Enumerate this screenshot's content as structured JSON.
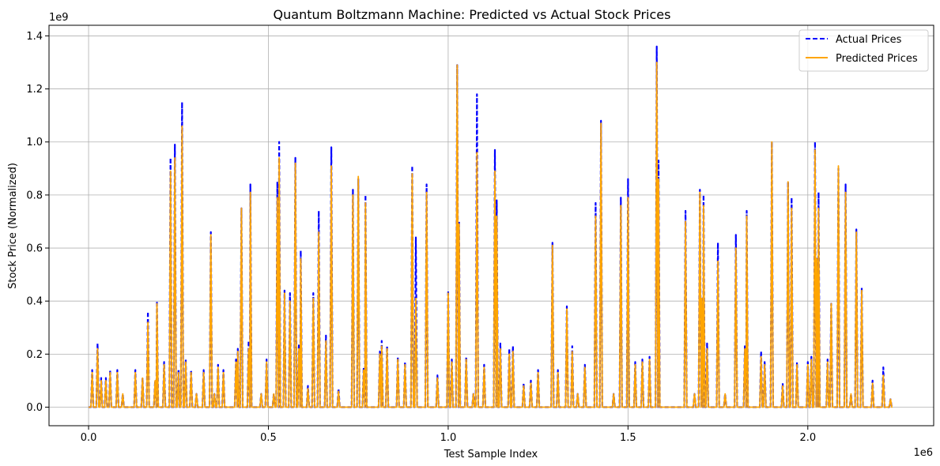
{
  "chart_data": {
    "type": "line",
    "title": "Quantum Boltzmann Machine: Predicted vs Actual Stock Prices",
    "xlabel": "Test Sample Index",
    "ylabel": "Stock Price (Normalized)",
    "x_offset_text": "1e6",
    "y_offset_text": "1e9",
    "xlim": [
      -0.11,
      2.35
    ],
    "ylim": [
      -0.07,
      1.44
    ],
    "x_ticks": [
      0.0,
      0.5,
      1.0,
      1.5,
      2.0
    ],
    "x_tick_labels": [
      "0.0",
      "0.5",
      "1.0",
      "1.5",
      "2.0"
    ],
    "y_ticks": [
      0.0,
      0.2,
      0.4,
      0.6,
      0.8,
      1.0,
      1.2,
      1.4
    ],
    "y_tick_labels": [
      "0.0",
      "0.2",
      "0.4",
      "0.6",
      "0.8",
      "1.0",
      "1.2",
      "1.4"
    ],
    "grid": true,
    "legend_position": "top-right",
    "series": [
      {
        "name": "Actual Prices",
        "color": "#0000ff",
        "style": "dashed",
        "peaks": [
          [
            0.01,
            0.14
          ],
          [
            0.025,
            0.24
          ],
          [
            0.035,
            0.11
          ],
          [
            0.048,
            0.11
          ],
          [
            0.06,
            0.14
          ],
          [
            0.08,
            0.14
          ],
          [
            0.095,
            0.05
          ],
          [
            0.13,
            0.14
          ],
          [
            0.15,
            0.11
          ],
          [
            0.165,
            0.36
          ],
          [
            0.185,
            0.1
          ],
          [
            0.19,
            0.4
          ],
          [
            0.21,
            0.17
          ],
          [
            0.228,
            0.94
          ],
          [
            0.24,
            0.99
          ],
          [
            0.25,
            0.14
          ],
          [
            0.26,
            1.15
          ],
          [
            0.27,
            0.18
          ],
          [
            0.285,
            0.14
          ],
          [
            0.3,
            0.05
          ],
          [
            0.32,
            0.14
          ],
          [
            0.34,
            0.66
          ],
          [
            0.35,
            0.05
          ],
          [
            0.36,
            0.16
          ],
          [
            0.375,
            0.14
          ],
          [
            0.41,
            0.18
          ],
          [
            0.415,
            0.22
          ],
          [
            0.425,
            0.75
          ],
          [
            0.445,
            0.25
          ],
          [
            0.45,
            0.84
          ],
          [
            0.48,
            0.05
          ],
          [
            0.495,
            0.18
          ],
          [
            0.515,
            0.05
          ],
          [
            0.525,
            0.85
          ],
          [
            0.53,
            1.0
          ],
          [
            0.545,
            0.44
          ],
          [
            0.56,
            0.43
          ],
          [
            0.575,
            0.94
          ],
          [
            0.585,
            0.24
          ],
          [
            0.59,
            0.59
          ],
          [
            0.61,
            0.08
          ],
          [
            0.625,
            0.43
          ],
          [
            0.64,
            0.74
          ],
          [
            0.66,
            0.27
          ],
          [
            0.675,
            0.98
          ],
          [
            0.695,
            0.07
          ],
          [
            0.735,
            0.82
          ],
          [
            0.75,
            0.86
          ],
          [
            0.765,
            0.15
          ],
          [
            0.77,
            0.8
          ],
          [
            0.81,
            0.21
          ],
          [
            0.815,
            0.25
          ],
          [
            0.83,
            0.23
          ],
          [
            0.86,
            0.19
          ],
          [
            0.88,
            0.17
          ],
          [
            0.9,
            0.91
          ],
          [
            0.91,
            0.64
          ],
          [
            0.94,
            0.84
          ],
          [
            0.97,
            0.12
          ],
          [
            1.0,
            0.44
          ],
          [
            1.01,
            0.18
          ],
          [
            1.025,
            1.29
          ],
          [
            1.03,
            0.7
          ],
          [
            1.05,
            0.19
          ],
          [
            1.07,
            0.05
          ],
          [
            1.08,
            1.18
          ],
          [
            1.1,
            0.16
          ],
          [
            1.13,
            0.97
          ],
          [
            1.135,
            0.78
          ],
          [
            1.145,
            0.24
          ],
          [
            1.17,
            0.22
          ],
          [
            1.18,
            0.23
          ],
          [
            1.21,
            0.09
          ],
          [
            1.23,
            0.1
          ],
          [
            1.25,
            0.14
          ],
          [
            1.29,
            0.62
          ],
          [
            1.305,
            0.14
          ],
          [
            1.33,
            0.38
          ],
          [
            1.345,
            0.23
          ],
          [
            1.36,
            0.05
          ],
          [
            1.38,
            0.16
          ],
          [
            1.41,
            0.77
          ],
          [
            1.425,
            1.08
          ],
          [
            1.46,
            0.05
          ],
          [
            1.48,
            0.79
          ],
          [
            1.5,
            0.86
          ],
          [
            1.52,
            0.17
          ],
          [
            1.54,
            0.18
          ],
          [
            1.56,
            0.19
          ],
          [
            1.58,
            1.36
          ],
          [
            1.585,
            0.93
          ],
          [
            1.66,
            0.74
          ],
          [
            1.685,
            0.05
          ],
          [
            1.7,
            0.82
          ],
          [
            1.705,
            0.41
          ],
          [
            1.71,
            0.8
          ],
          [
            1.72,
            0.24
          ],
          [
            1.75,
            0.62
          ],
          [
            1.77,
            0.05
          ],
          [
            1.8,
            0.65
          ],
          [
            1.825,
            0.23
          ],
          [
            1.83,
            0.74
          ],
          [
            1.87,
            0.21
          ],
          [
            1.88,
            0.17
          ],
          [
            1.9,
            1.0
          ],
          [
            1.93,
            0.09
          ],
          [
            1.945,
            0.85
          ],
          [
            1.955,
            0.79
          ],
          [
            1.97,
            0.17
          ],
          [
            2.0,
            0.17
          ],
          [
            2.01,
            0.19
          ],
          [
            2.02,
            1.0
          ],
          [
            2.025,
            0.56
          ],
          [
            2.03,
            0.81
          ],
          [
            2.055,
            0.18
          ],
          [
            2.065,
            0.39
          ],
          [
            2.085,
            0.9
          ],
          [
            2.105,
            0.84
          ],
          [
            2.12,
            0.05
          ],
          [
            2.135,
            0.67
          ],
          [
            2.15,
            0.45
          ],
          [
            2.18,
            0.1
          ],
          [
            2.21,
            0.15
          ],
          [
            2.23,
            0.03
          ]
        ]
      },
      {
        "name": "Predicted Prices",
        "color": "#ffa500",
        "style": "solid",
        "peaks": [
          [
            0.01,
            0.13
          ],
          [
            0.025,
            0.22
          ],
          [
            0.035,
            0.1
          ],
          [
            0.048,
            0.1
          ],
          [
            0.06,
            0.13
          ],
          [
            0.08,
            0.13
          ],
          [
            0.095,
            0.05
          ],
          [
            0.13,
            0.13
          ],
          [
            0.15,
            0.11
          ],
          [
            0.165,
            0.32
          ],
          [
            0.185,
            0.1
          ],
          [
            0.19,
            0.39
          ],
          [
            0.21,
            0.16
          ],
          [
            0.228,
            0.89
          ],
          [
            0.24,
            0.94
          ],
          [
            0.25,
            0.13
          ],
          [
            0.26,
            1.06
          ],
          [
            0.27,
            0.17
          ],
          [
            0.285,
            0.13
          ],
          [
            0.3,
            0.05
          ],
          [
            0.32,
            0.13
          ],
          [
            0.34,
            0.65
          ],
          [
            0.35,
            0.05
          ],
          [
            0.36,
            0.15
          ],
          [
            0.375,
            0.13
          ],
          [
            0.41,
            0.17
          ],
          [
            0.415,
            0.21
          ],
          [
            0.425,
            0.75
          ],
          [
            0.445,
            0.22
          ],
          [
            0.45,
            0.81
          ],
          [
            0.48,
            0.05
          ],
          [
            0.495,
            0.17
          ],
          [
            0.515,
            0.05
          ],
          [
            0.525,
            0.79
          ],
          [
            0.53,
            0.94
          ],
          [
            0.545,
            0.43
          ],
          [
            0.56,
            0.4
          ],
          [
            0.575,
            0.92
          ],
          [
            0.585,
            0.22
          ],
          [
            0.59,
            0.56
          ],
          [
            0.61,
            0.07
          ],
          [
            0.625,
            0.41
          ],
          [
            0.64,
            0.66
          ],
          [
            0.66,
            0.25
          ],
          [
            0.675,
            0.91
          ],
          [
            0.695,
            0.06
          ],
          [
            0.735,
            0.8
          ],
          [
            0.75,
            0.87
          ],
          [
            0.765,
            0.14
          ],
          [
            0.77,
            0.77
          ],
          [
            0.81,
            0.2
          ],
          [
            0.815,
            0.23
          ],
          [
            0.83,
            0.22
          ],
          [
            0.86,
            0.18
          ],
          [
            0.88,
            0.16
          ],
          [
            0.9,
            0.88
          ],
          [
            0.91,
            0.41
          ],
          [
            0.94,
            0.81
          ],
          [
            0.97,
            0.11
          ],
          [
            1.0,
            0.43
          ],
          [
            1.01,
            0.17
          ],
          [
            1.025,
            1.29
          ],
          [
            1.03,
            0.69
          ],
          [
            1.05,
            0.18
          ],
          [
            1.07,
            0.05
          ],
          [
            1.08,
            0.96
          ],
          [
            1.1,
            0.15
          ],
          [
            1.13,
            0.89
          ],
          [
            1.135,
            0.72
          ],
          [
            1.145,
            0.22
          ],
          [
            1.17,
            0.2
          ],
          [
            1.18,
            0.21
          ],
          [
            1.21,
            0.08
          ],
          [
            1.23,
            0.09
          ],
          [
            1.25,
            0.13
          ],
          [
            1.29,
            0.61
          ],
          [
            1.305,
            0.13
          ],
          [
            1.33,
            0.37
          ],
          [
            1.345,
            0.21
          ],
          [
            1.36,
            0.05
          ],
          [
            1.38,
            0.15
          ],
          [
            1.41,
            0.72
          ],
          [
            1.425,
            1.07
          ],
          [
            1.46,
            0.05
          ],
          [
            1.48,
            0.76
          ],
          [
            1.5,
            0.79
          ],
          [
            1.52,
            0.16
          ],
          [
            1.54,
            0.17
          ],
          [
            1.56,
            0.18
          ],
          [
            1.58,
            1.3
          ],
          [
            1.585,
            0.86
          ],
          [
            1.66,
            0.7
          ],
          [
            1.685,
            0.05
          ],
          [
            1.7,
            0.81
          ],
          [
            1.705,
            0.41
          ],
          [
            1.71,
            0.76
          ],
          [
            1.72,
            0.22
          ],
          [
            1.75,
            0.55
          ],
          [
            1.77,
            0.05
          ],
          [
            1.8,
            0.6
          ],
          [
            1.825,
            0.22
          ],
          [
            1.83,
            0.72
          ],
          [
            1.87,
            0.19
          ],
          [
            1.88,
            0.16
          ],
          [
            1.9,
            1.0
          ],
          [
            1.93,
            0.08
          ],
          [
            1.945,
            0.85
          ],
          [
            1.955,
            0.75
          ],
          [
            1.97,
            0.16
          ],
          [
            2.0,
            0.16
          ],
          [
            2.01,
            0.18
          ],
          [
            2.02,
            0.97
          ],
          [
            2.025,
            0.56
          ],
          [
            2.03,
            0.75
          ],
          [
            2.055,
            0.17
          ],
          [
            2.065,
            0.39
          ],
          [
            2.085,
            0.91
          ],
          [
            2.105,
            0.81
          ],
          [
            2.12,
            0.05
          ],
          [
            2.135,
            0.66
          ],
          [
            2.15,
            0.44
          ],
          [
            2.18,
            0.09
          ],
          [
            2.21,
            0.12
          ],
          [
            2.23,
            0.03
          ]
        ]
      }
    ]
  }
}
